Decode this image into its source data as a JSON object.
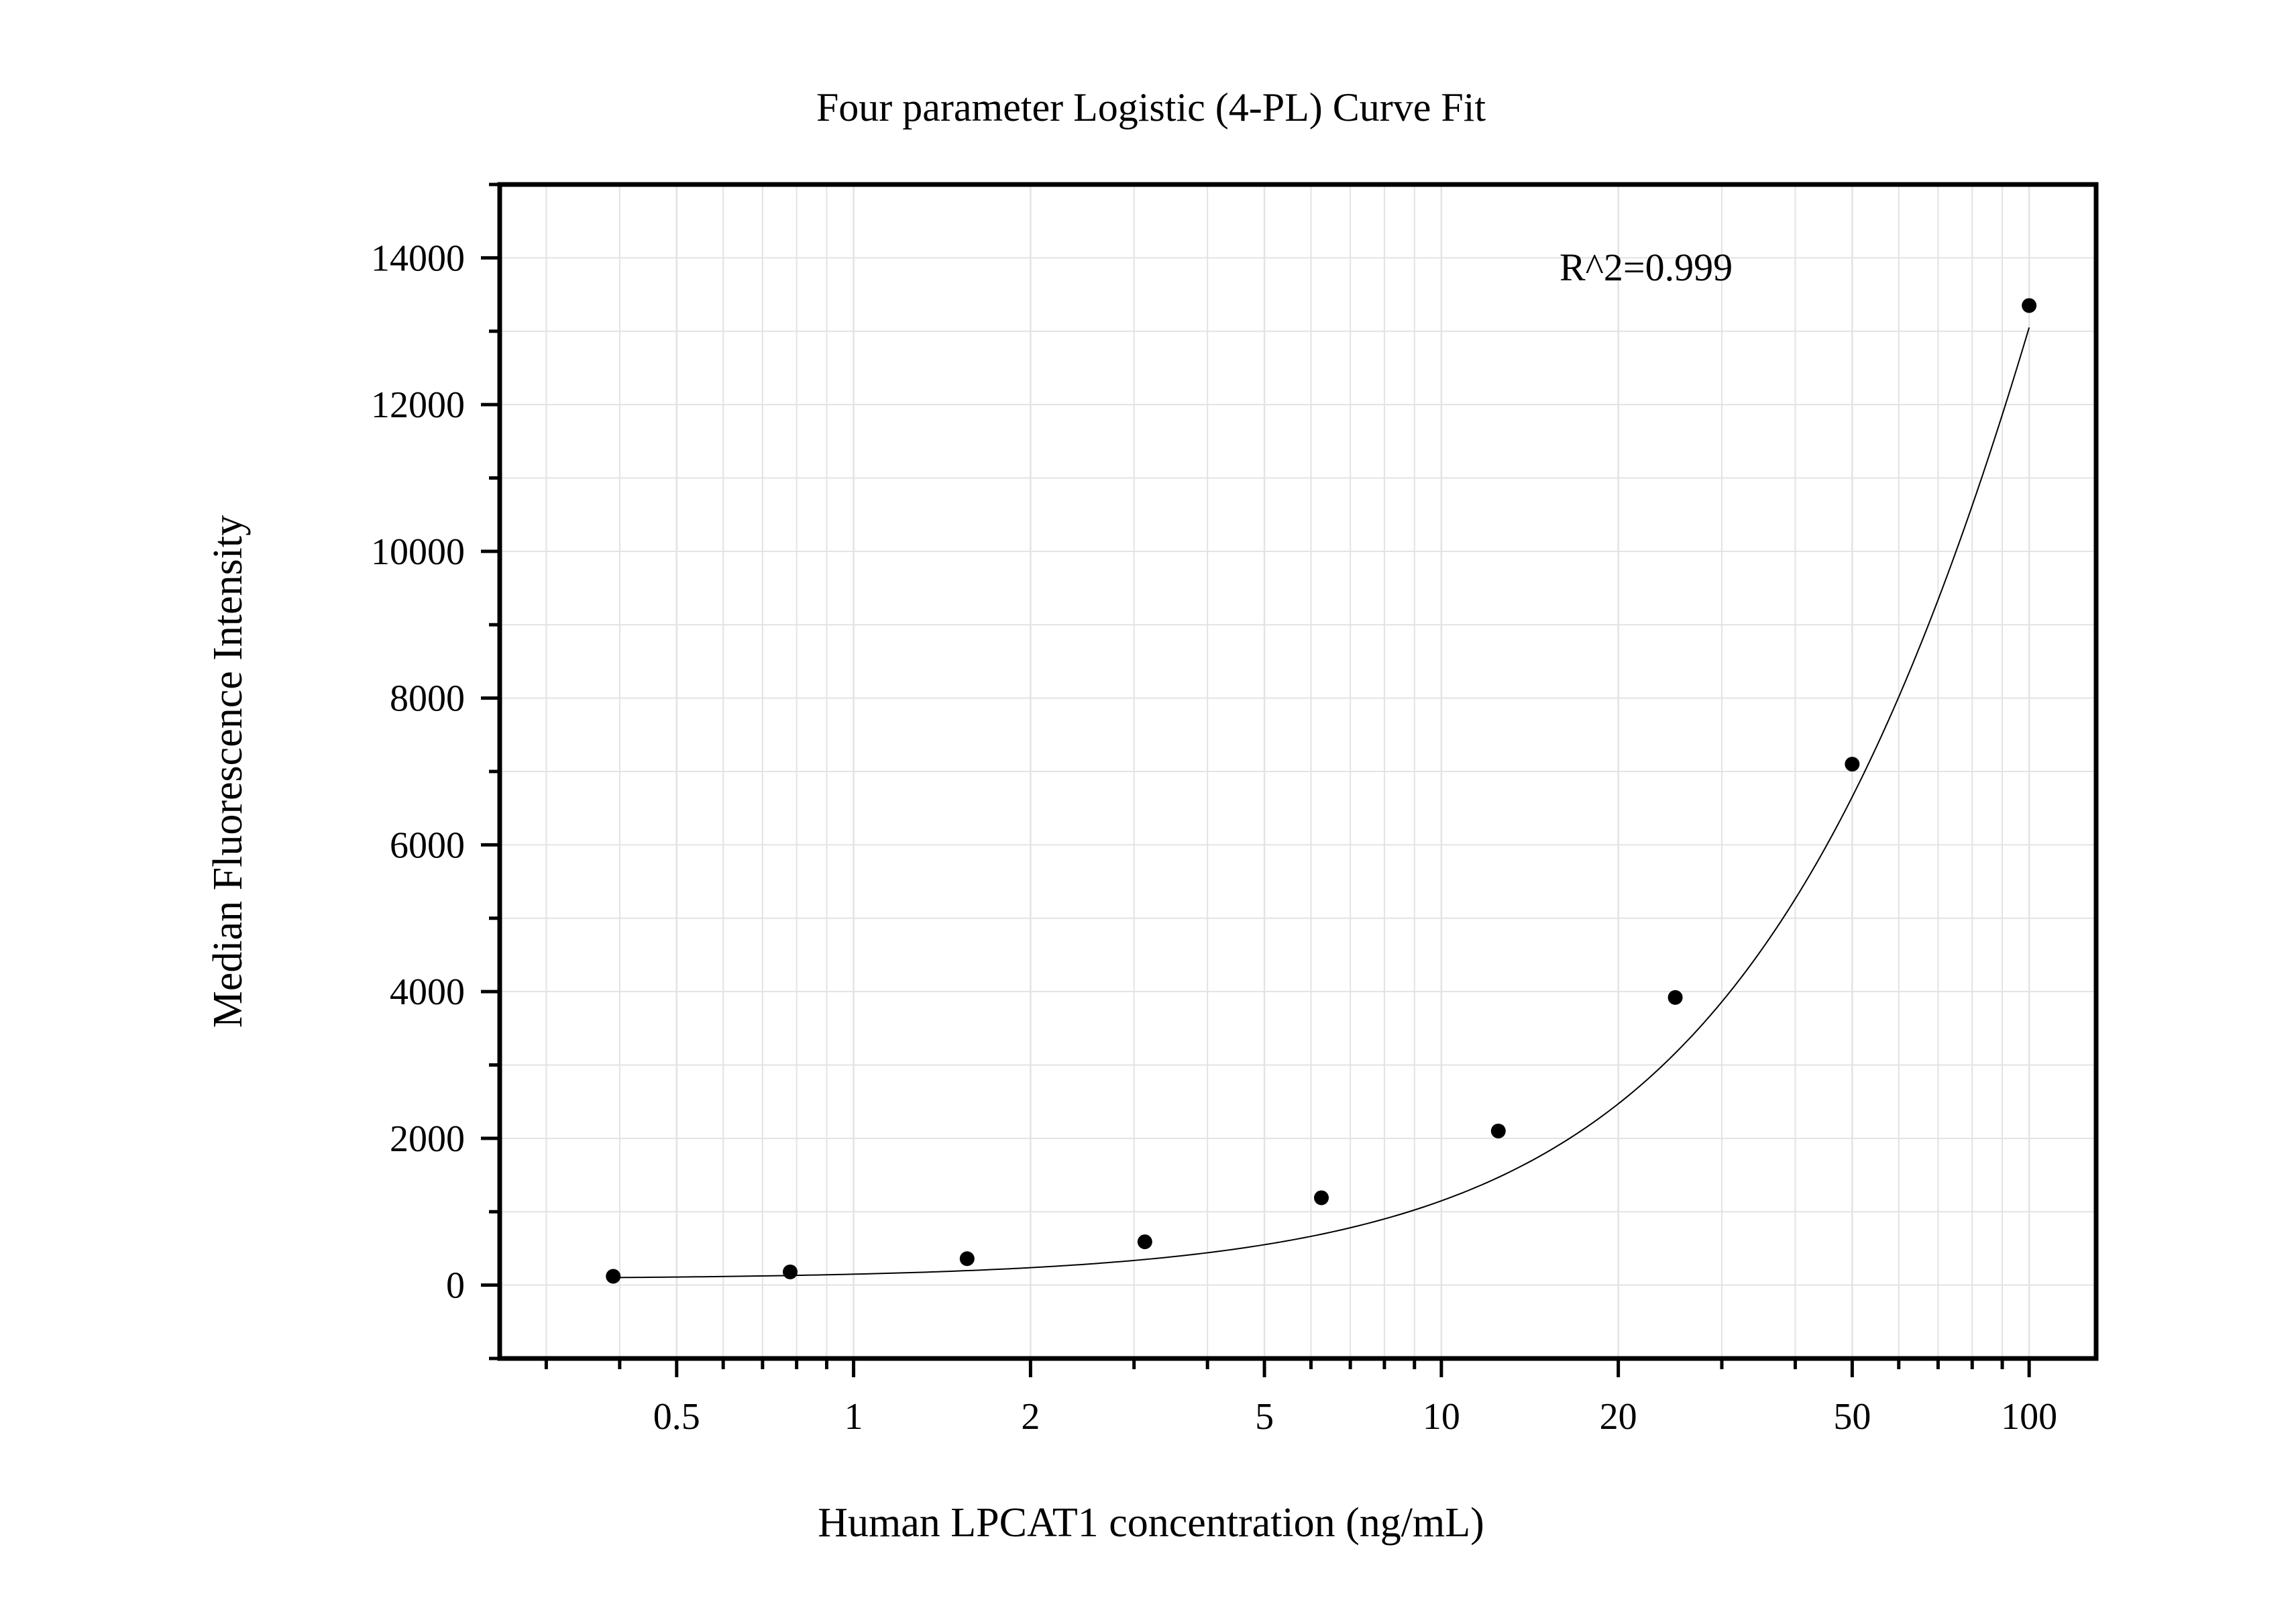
{
  "chart_data": {
    "type": "scatter",
    "title": "Four parameter Logistic (4-PL) Curve Fit",
    "xlabel": "Human LPCAT1 concentration (ng/mL)",
    "ylabel": "Median Fluorescence Intensity",
    "annotation": "R^2=0.999",
    "x_scale": "log",
    "xlim": [
      0.25,
      130
    ],
    "ylim": [
      -1000,
      15000
    ],
    "x_ticks": [
      0.5,
      1,
      2,
      5,
      10,
      20,
      50,
      100
    ],
    "x_tick_labels": [
      "0.5",
      "1",
      "2",
      "5",
      "10",
      "20",
      "50",
      "100"
    ],
    "y_ticks": [
      0,
      2000,
      4000,
      6000,
      8000,
      10000,
      12000,
      14000
    ],
    "y_tick_labels": [
      "0",
      "2000",
      "4000",
      "6000",
      "8000",
      "10000",
      "12000",
      "14000"
    ],
    "grid": true,
    "series": [
      {
        "x": [
          0.39,
          0.78,
          1.56,
          3.13,
          6.25,
          12.5,
          25,
          50,
          100
        ],
        "y": [
          120,
          180,
          360,
          590,
          1190,
          2100,
          3920,
          7100,
          13350
        ]
      }
    ],
    "fit_curve": {
      "model": "4PL",
      "A": 80,
      "B": 1.2,
      "C": 250,
      "D": 52000
    },
    "colors": {
      "points": "#000000",
      "curve": "#000000",
      "grid": "#e3e3e3",
      "axis": "#000000"
    }
  }
}
